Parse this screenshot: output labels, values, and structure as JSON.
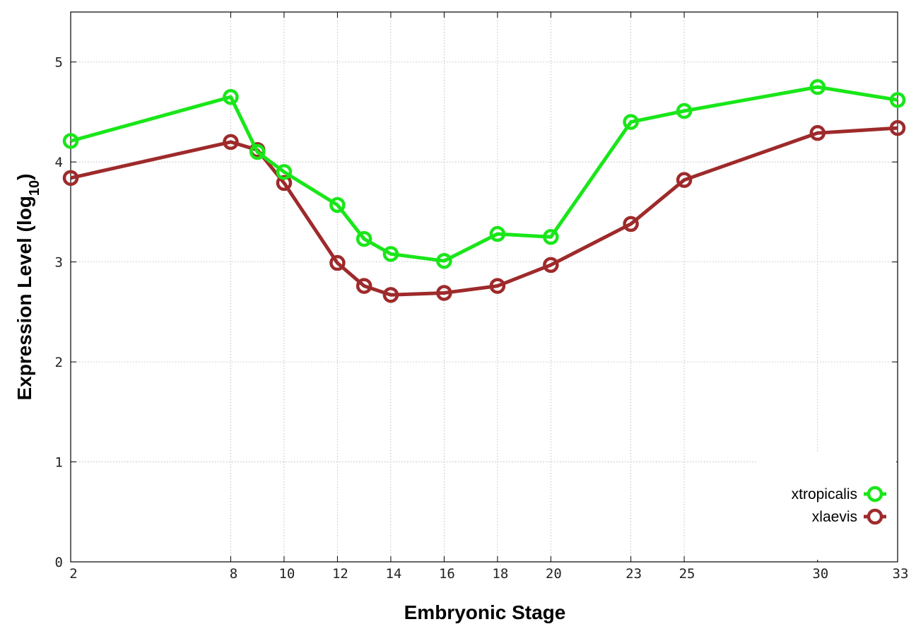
{
  "chart_data": {
    "type": "line",
    "title": "",
    "xlabel": "Embryonic Stage",
    "ylabel_main": "Expression Level (log",
    "ylabel_sub": "10",
    "ylabel_close": ")",
    "x": [
      2,
      8,
      9,
      10,
      12,
      13,
      14,
      16,
      18,
      20,
      23,
      25,
      30,
      33
    ],
    "x_ticks": [
      2,
      8,
      10,
      12,
      14,
      16,
      18,
      20,
      23,
      25,
      30,
      33
    ],
    "xlim": [
      2,
      33
    ],
    "y_ticks": [
      0,
      1,
      2,
      3,
      4,
      5
    ],
    "ylim": [
      0,
      5.5
    ],
    "grid": true,
    "legend_position": "bottom-right",
    "series": [
      {
        "name": "xtropicalis",
        "color": "#19e619",
        "values": [
          4.21,
          4.65,
          4.1,
          3.9,
          3.57,
          3.23,
          3.08,
          3.01,
          3.28,
          3.25,
          4.4,
          4.51,
          4.75,
          4.62
        ]
      },
      {
        "name": "xlaevis",
        "color": "#9e2a2b",
        "values": [
          3.84,
          4.2,
          4.12,
          3.79,
          2.99,
          2.76,
          2.67,
          2.69,
          2.76,
          2.97,
          3.38,
          3.82,
          4.29,
          4.34
        ]
      }
    ]
  }
}
